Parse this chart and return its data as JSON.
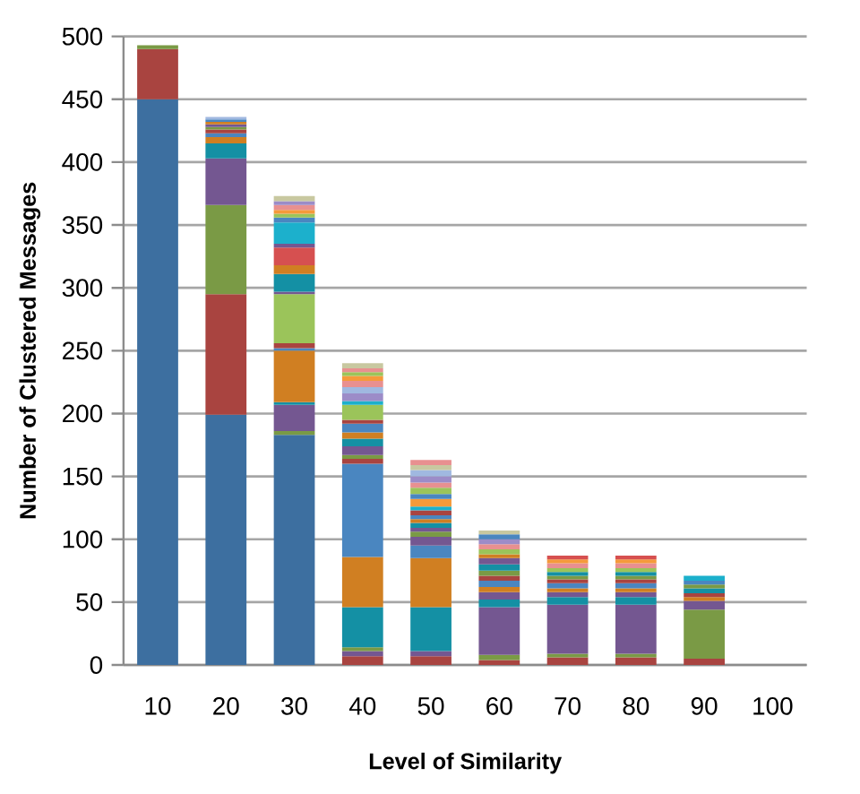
{
  "chart_data": {
    "type": "bar",
    "stacked": true,
    "xlabel": "Level of Similarity",
    "ylabel": "Number of Clustered Messages",
    "categories": [
      "10",
      "20",
      "30",
      "40",
      "50",
      "60",
      "70",
      "80",
      "90",
      "100"
    ],
    "ylim": [
      0,
      500
    ],
    "yticks": [
      0,
      50,
      100,
      150,
      200,
      250,
      300,
      350,
      400,
      450,
      500
    ],
    "grid": "y",
    "series": [
      {
        "values": [
          450,
          199,
          183,
          7,
          7,
          4,
          6,
          6,
          5,
          null
        ],
        "colors": [
          "#3d6fa0",
          "#3d6fa0",
          "#3d6fa0",
          "#a94440",
          "#a94440",
          "#a94440",
          "#a94440",
          "#a94440",
          "#a94440",
          null
        ]
      },
      {
        "values": [
          40,
          96,
          3,
          4,
          4,
          4,
          3,
          3,
          39,
          null
        ],
        "colors": [
          "#a94440",
          "#a94440",
          "#7a9a45",
          "#745791",
          "#745791",
          "#7a9a45",
          "#7a9a45",
          "#7a9a45",
          "#7a9a45",
          null
        ]
      },
      {
        "values": [
          3,
          71,
          21,
          3,
          35,
          38,
          39,
          39,
          7,
          null
        ],
        "colors": [
          "#7a9a45",
          "#7a9a45",
          "#745791",
          "#7a9a45",
          "#1490a4",
          "#745791",
          "#745791",
          "#745791",
          "#745791",
          null
        ]
      },
      {
        "values": [
          null,
          37,
          2,
          32,
          39,
          6,
          6,
          6,
          3,
          null
        ],
        "colors": [
          null,
          "#745791",
          "#1490a4",
          "#1490a4",
          "#d07f22",
          "#1490a4",
          "#1490a4",
          "#1490a4",
          "#d07f22",
          null
        ]
      },
      {
        "values": [
          null,
          12,
          41,
          40,
          10,
          6,
          4,
          4,
          3,
          null
        ],
        "colors": [
          null,
          "#1490a4",
          "#d07f22",
          "#d07f22",
          "#4a86c0",
          "#745791",
          "#745791",
          "#745791",
          "#a94440",
          null
        ]
      },
      {
        "values": [
          null,
          5,
          2,
          74,
          7,
          4,
          3,
          3,
          4,
          null
        ],
        "colors": [
          null,
          "#d07f22",
          "#4a86c0",
          "#4a86c0",
          "#745791",
          "#d07f22",
          "#d07f22",
          "#d07f22",
          "#1490a4",
          null
        ]
      },
      {
        "values": [
          null,
          3,
          4,
          4,
          4,
          5,
          4,
          4,
          3,
          null
        ],
        "colors": [
          null,
          "#4a86c0",
          "#a94440",
          "#a94440",
          "#7a9a45",
          "#4a86c0",
          "#4a86c0",
          "#4a86c0",
          "#7a9a45",
          null
        ]
      },
      {
        "values": [
          null,
          3,
          39,
          3,
          3,
          4,
          3,
          3,
          3,
          null
        ],
        "colors": [
          null,
          "#a94440",
          "#9bc45a",
          "#7a9a45",
          "#745791",
          "#a94440",
          "#a94440",
          "#a94440",
          "#4a86c0",
          null
        ]
      },
      {
        "values": [
          null,
          2,
          2,
          7,
          4,
          4,
          3,
          3,
          4,
          null
        ],
        "colors": [
          null,
          "#7a9a45",
          "#745791",
          "#745791",
          "#1490a4",
          "#7a9a45",
          "#7a9a45",
          "#7a9a45",
          "#1cb0cc",
          null
        ]
      },
      {
        "values": [
          null,
          2,
          14,
          6,
          3,
          5,
          3,
          3,
          null,
          null
        ],
        "colors": [
          null,
          "#745791",
          "#1490a4",
          "#1490a4",
          "#d07f22",
          "#1490a4",
          "#1490a4",
          "#1490a4",
          null,
          null
        ]
      },
      {
        "values": [
          null,
          2,
          7,
          5,
          3,
          5,
          3,
          3,
          null,
          null
        ],
        "colors": [
          null,
          "#d07f22",
          "#d07f22",
          "#d07f22",
          "#4a86c0",
          "#745791",
          "#9bc45a",
          "#9bc45a",
          null,
          null
        ]
      },
      {
        "values": [
          null,
          2,
          14,
          7,
          4,
          3,
          4,
          4,
          null,
          null
        ],
        "colors": [
          null,
          "#4a86c0",
          "#d65050",
          "#4a86c0",
          "#a94440",
          "#d07f22",
          "#e89090",
          "#e89090",
          null,
          null
        ]
      },
      {
        "values": [
          null,
          2,
          3,
          3,
          3,
          4,
          3,
          3,
          null,
          null
        ],
        "colors": [
          null,
          "#a0b8e0",
          "#745791",
          "#a94440",
          "#1cb0cc",
          "#9bc45a",
          "#f59a3a",
          "#f59a3a",
          null,
          null
        ]
      },
      {
        "values": [
          null,
          null,
          17,
          12,
          6,
          4,
          3,
          3,
          null,
          null
        ],
        "colors": [
          null,
          null,
          "#1cb0cc",
          "#9bc45a",
          "#f59a3a",
          "#e89090",
          "#d65050",
          "#d65050",
          null,
          null
        ]
      },
      {
        "values": [
          null,
          null,
          4,
          3,
          4,
          4,
          null,
          null,
          null,
          null
        ],
        "colors": [
          null,
          null,
          "#4a86c0",
          "#1cb0cc",
          "#4a86c0",
          "#9c8cc8",
          null,
          null,
          null,
          null
        ]
      },
      {
        "values": [
          null,
          null,
          3,
          6,
          5,
          4,
          null,
          null,
          null,
          null
        ],
        "colors": [
          null,
          null,
          "#9bc45a",
          "#9c8cc8",
          "#9bc45a",
          "#4a86c0",
          null,
          null,
          null,
          null
        ]
      },
      {
        "values": [
          null,
          null,
          3,
          5,
          4,
          3,
          null,
          null,
          null,
          null
        ],
        "colors": [
          null,
          null,
          "#f59a3a",
          "#a0b8e0",
          "#e89090",
          "#c8c8a0",
          null,
          null,
          null,
          null
        ]
      },
      {
        "values": [
          null,
          null,
          4,
          5,
          5,
          null,
          null,
          null,
          null,
          null
        ],
        "colors": [
          null,
          null,
          "#e89090",
          "#e89090",
          "#9c8cc8",
          null,
          null,
          null,
          null,
          null
        ]
      },
      {
        "values": [
          null,
          null,
          3,
          4,
          5,
          null,
          null,
          null,
          null,
          null
        ],
        "colors": [
          null,
          null,
          "#9c8cc8",
          "#f59a3a",
          "#a0b8e0",
          null,
          null,
          null,
          null,
          null
        ]
      },
      {
        "values": [
          null,
          null,
          4,
          3,
          4,
          null,
          null,
          null,
          null,
          null
        ],
        "colors": [
          null,
          null,
          "#c8c8a0",
          "#9bc45a",
          "#c8c8a0",
          null,
          null,
          null,
          null,
          null
        ]
      },
      {
        "values": [
          null,
          null,
          null,
          3,
          4,
          null,
          null,
          null,
          null,
          null
        ],
        "colors": [
          null,
          null,
          null,
          "#e89090",
          "#e89090",
          null,
          null,
          null,
          null,
          null
        ]
      },
      {
        "values": [
          null,
          null,
          null,
          4,
          null,
          null,
          null,
          null,
          null,
          null
        ],
        "colors": [
          null,
          null,
          null,
          "#c8c8a0",
          null,
          null,
          null,
          null,
          null,
          null
        ]
      }
    ]
  }
}
